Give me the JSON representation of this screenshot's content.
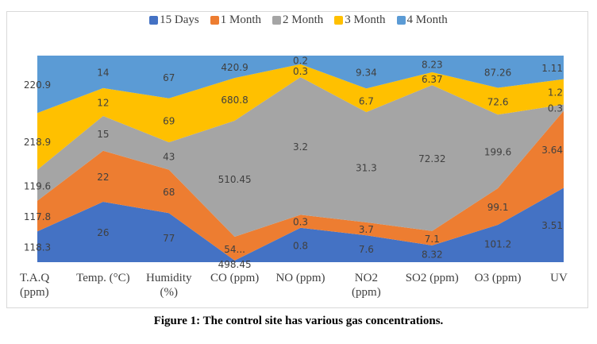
{
  "chart_data": {
    "type": "area",
    "stacking": "percent",
    "title": "",
    "xlabel": "",
    "ylabel": "",
    "grid": false,
    "legend_position": "top",
    "categories": [
      "T.A.Q (ppm)",
      "Temp. (°C)",
      "Humidity (%)",
      "CO (ppm)",
      "NO (ppm)",
      "NO2 (ppm)",
      "SO2 (ppm)",
      "O3 (ppm)",
      "UV"
    ],
    "category_lines": [
      [
        "T.A.Q",
        "(ppm)"
      ],
      [
        "Temp. (°C)"
      ],
      [
        "Humidity",
        "(%)"
      ],
      [
        "CO (ppm)"
      ],
      [
        "NO (ppm)"
      ],
      [
        "NO2",
        "(ppm)"
      ],
      [
        "SO2 (ppm)"
      ],
      [
        "O3 (ppm)"
      ],
      [
        "UV"
      ]
    ],
    "series": [
      {
        "name": "15 Days",
        "color": "#4472C4",
        "values": [
          118.3,
          26,
          77,
          498.45,
          0.8,
          7.6,
          8.32,
          101.2,
          3.51
        ],
        "labels": [
          "118.3",
          "26",
          "77",
          "498.45",
          "0.8",
          "7.6",
          "8.32",
          "101.2",
          "3.51"
        ]
      },
      {
        "name": "1 Month",
        "color": "#ED7D31",
        "values": [
          117.8,
          22,
          68,
          null,
          0.3,
          3.7,
          7.1,
          99.1,
          3.64
        ],
        "labels": [
          "117.8",
          "22",
          "68",
          "54...",
          "0.3",
          "3.7",
          "7.1",
          "99.1",
          "3.64"
        ]
      },
      {
        "name": "2 Month",
        "color": "#A5A5A5",
        "values": [
          119.6,
          15,
          43,
          510.45,
          3.2,
          31.3,
          72.32,
          199.6,
          0.3
        ],
        "labels": [
          "119.6",
          "15",
          "43",
          "510.45",
          "3.2",
          "31.3",
          "72.32",
          "199.6",
          "0.3"
        ]
      },
      {
        "name": "3 Month",
        "color": "#FFC000",
        "values": [
          218.9,
          12,
          69,
          680.8,
          0.3,
          6.7,
          6.37,
          72.6,
          1.2
        ],
        "labels": [
          "218.9",
          "12",
          "69",
          "680.8",
          "0.3",
          "6.7",
          "6.37",
          "72.6",
          "1.2"
        ]
      },
      {
        "name": "4 Month",
        "color": "#5B9BD5",
        "values": [
          220.9,
          14,
          67,
          420.9,
          0.2,
          9.34,
          8.23,
          87.26,
          1.11
        ],
        "labels": [
          "220.9",
          "14",
          "67",
          "420.9",
          "0.2",
          "9.34",
          "8.23",
          "87.26",
          "1.11"
        ]
      }
    ],
    "plotted_cumulative_share_override": {
      "3": [
        0.008,
        0.123,
        0.685,
        0.892,
        1.0
      ]
    },
    "ylim": [
      0,
      1
    ]
  },
  "caption": "Figure 1: The control site has various gas concentrations.",
  "label_color": "#404040"
}
